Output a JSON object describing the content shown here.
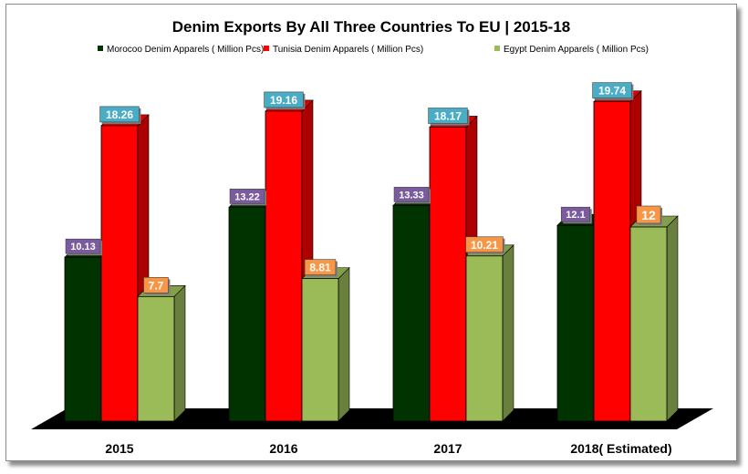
{
  "chart_data": {
    "type": "bar",
    "title": "Denim Exports By All Three Countries  To EU | 2015-18",
    "xlabel": "",
    "ylabel": "",
    "ylim": [
      0,
      22
    ],
    "grid": false,
    "legend_position": "top",
    "categories": [
      "2015",
      "2016",
      "2017",
      "2018( Estimated)"
    ],
    "series": [
      {
        "name": "Morocoo  Denim Apparels ( Million Pcs)",
        "values": [
          10.13,
          13.22,
          13.33,
          12.1
        ],
        "labels": [
          "10.13",
          "13.22",
          "13.33",
          "12.1"
        ],
        "color": "#003300",
        "label_color": "#7a5c9e"
      },
      {
        "name": "Tunisia  Denim Apparels ( Million Pcs)",
        "values": [
          18.26,
          19.16,
          18.17,
          19.74
        ],
        "labels": [
          "18.26",
          "19.16",
          "18.17",
          "19.74"
        ],
        "color": "#ff0000",
        "label_color": "#4bacc6"
      },
      {
        "name": "Egypt  Denim Apparels ( Million Pcs)",
        "values": [
          7.7,
          8.81,
          10.21,
          12
        ],
        "labels": [
          "7.7",
          "8.81",
          "10.21",
          "12"
        ],
        "color": "#9bbb59",
        "label_color": "#f79646"
      }
    ]
  }
}
